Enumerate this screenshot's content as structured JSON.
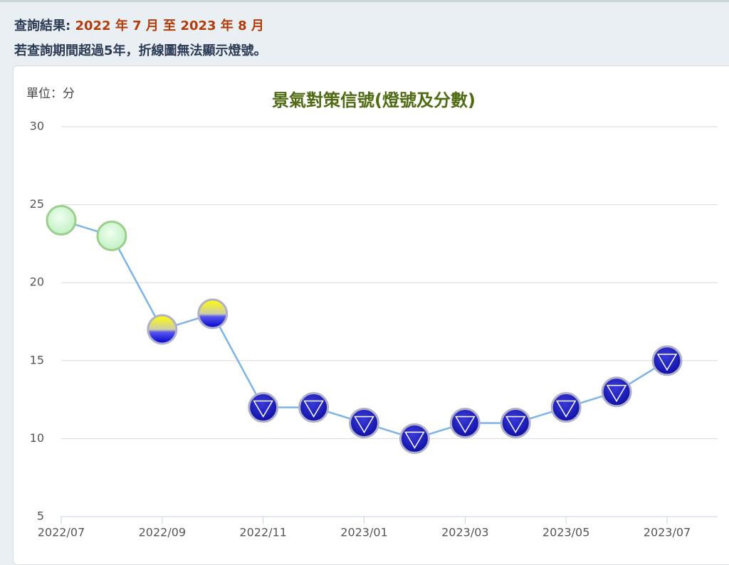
{
  "header": {
    "label": "查詢結果:",
    "range": "2022 年 7 月 至 2023 年 8 月",
    "note": "若查詢期間超過5年，折線圖無法顯示燈號。"
  },
  "chart_data": {
    "type": "line",
    "title": "景氣對策信號(燈號及分數)",
    "unit_label": "單位：分",
    "categories": [
      "2022/07",
      null,
      "2022/09",
      null,
      "2022/11",
      null,
      "2023/01",
      null,
      "2023/03",
      null,
      "2023/05",
      null,
      "2023/07"
    ],
    "series": [
      {
        "color": "#7db4e8",
        "values": [
          24,
          23,
          17,
          18,
          12,
          12,
          11,
          10,
          11,
          11,
          12,
          13,
          15
        ]
      }
    ],
    "point_styles": [
      "green",
      "green",
      "yellow-blue",
      "yellow-blue",
      "blue",
      "blue",
      "blue",
      "blue",
      "blue",
      "blue",
      "blue",
      "blue",
      "blue"
    ],
    "ylim": [
      5,
      30
    ],
    "yticks": [
      5,
      10,
      15,
      20,
      25,
      30
    ],
    "grid": true
  }
}
